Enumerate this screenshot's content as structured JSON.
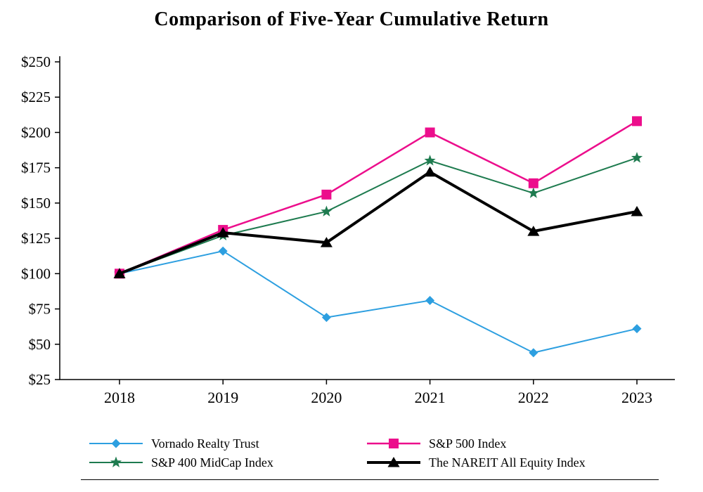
{
  "chart_data": {
    "type": "line",
    "title": "Comparison of Five-Year Cumulative Return",
    "x": [
      "2018",
      "2019",
      "2020",
      "2021",
      "2022",
      "2023"
    ],
    "xlabel": "",
    "ylabel": "",
    "ylim": [
      25,
      250
    ],
    "ytick_step": 25,
    "ytick_prefix": "$",
    "yticks": [
      "$25",
      "$50",
      "$75",
      "$100",
      "$125",
      "$150",
      "$175",
      "$200",
      "$225",
      "$250"
    ],
    "grid": false,
    "legend_position": "bottom",
    "series": [
      {
        "name": "Vornado Realty Trust",
        "color": "#2d9fe0",
        "marker": "diamond",
        "line_width": 2,
        "values": [
          100,
          116,
          69,
          81,
          44,
          61
        ]
      },
      {
        "name": "S&P 500 Index",
        "color": "#ec0e8c",
        "marker": "square",
        "line_width": 2.5,
        "values": [
          100,
          131,
          156,
          200,
          164,
          208
        ]
      },
      {
        "name": "S&P 400 MidCap Index",
        "color": "#1e7b4f",
        "marker": "star",
        "line_width": 2,
        "values": [
          100,
          127,
          144,
          180,
          157,
          182
        ]
      },
      {
        "name": "The NAREIT All Equity Index",
        "color": "#000000",
        "marker": "triangle",
        "line_width": 4,
        "values": [
          100,
          129,
          122,
          172,
          130,
          144
        ]
      }
    ]
  }
}
